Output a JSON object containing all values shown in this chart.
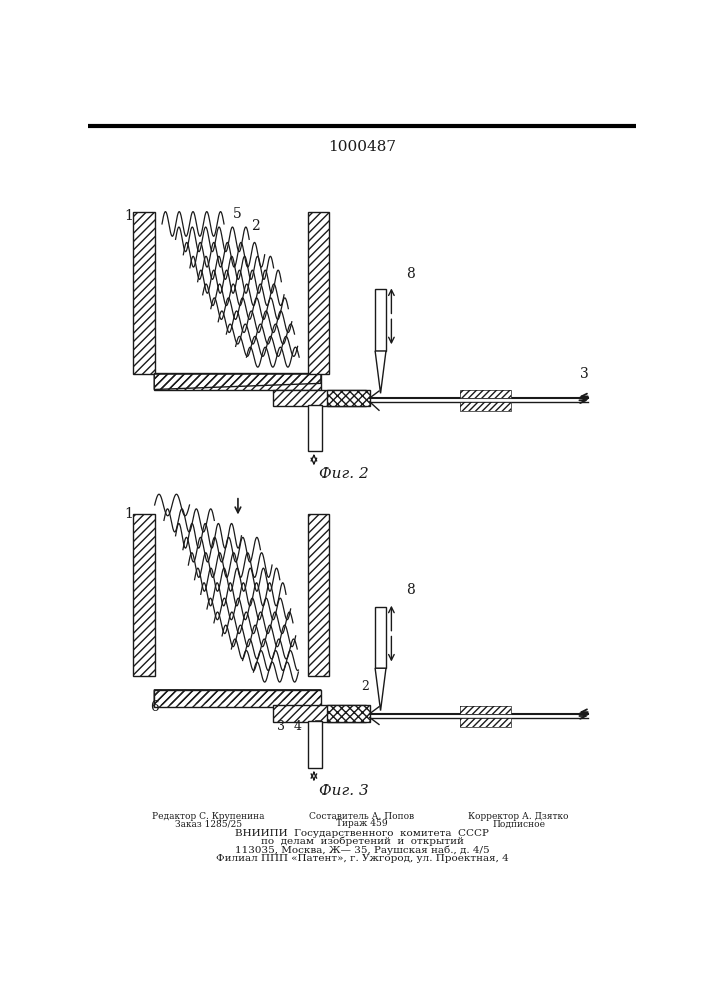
{
  "title": "1000487",
  "fig2_label": "Фиг. 2",
  "fig3_label": "Фиг. 3",
  "footer_col1_line1": "Редактор С. Крупенина",
  "footer_col1_line2": "Заказ 1285/25",
  "footer_col2_line1": "Составитель А. Попов",
  "footer_col2_line2": "Тираж 459",
  "footer_col3_line1": "Корректор А. Дзятко",
  "footer_col3_line2": "Подписное",
  "footer_line3": "ВНИИПИ  Государственного  комитета  СССР",
  "footer_line4": "по  делам  изобретений  и  открытий",
  "footer_line5": "113035, Москва, Ж— 35, Раушская наб., д. 4/5",
  "footer_line6": "Филиал ППП «Патент», г. Ужгород, ул. Проектная, 4",
  "bg_color": "#ffffff",
  "line_color": "#1a1a1a"
}
